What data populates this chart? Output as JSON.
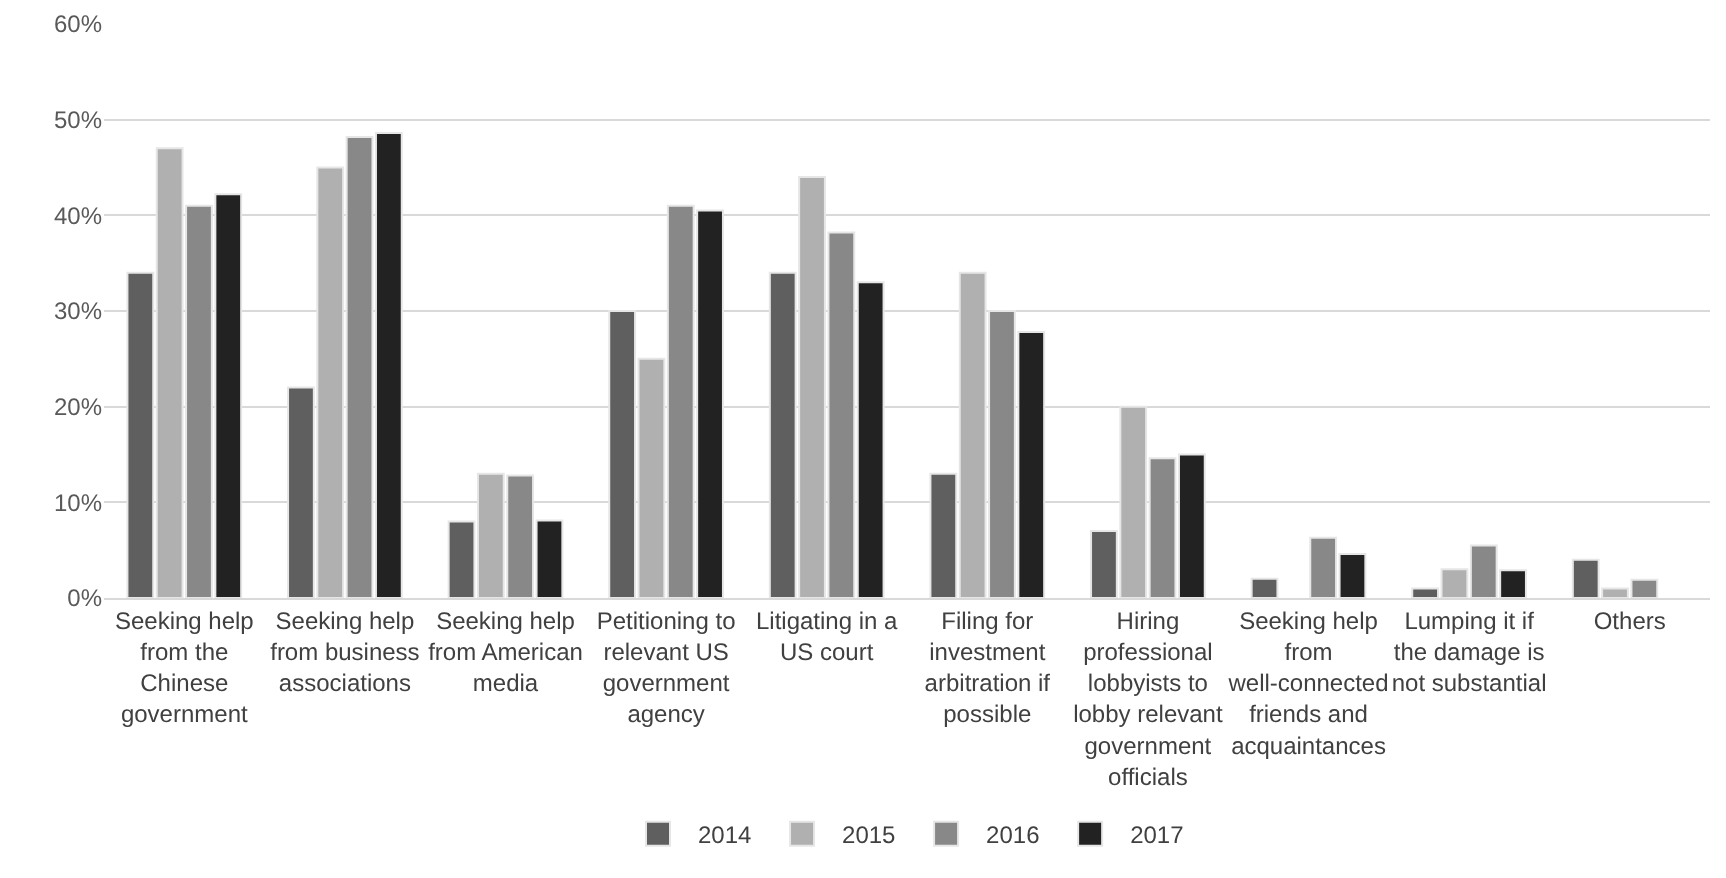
{
  "chart_data": {
    "type": "bar",
    "categories": [
      "Seeking help from the Chinese government",
      "Seeking help from business associations",
      "Seeking help from American media",
      "Petitioning to relevant US government agency",
      "Litigating in a US court",
      "Filing for investment arbitration if possible",
      "Hiring professional lobbyists to lobby relevant government officials",
      "Seeking help from well-connected friends and acquaintances",
      "Lumping it if the damage is not substantial",
      "Others"
    ],
    "series": [
      {
        "name": "2014",
        "color": "#5f5f5f",
        "values": [
          34,
          22,
          8,
          30,
          34,
          13,
          7,
          2,
          1,
          4
        ]
      },
      {
        "name": "2015",
        "color": "#b0b0b0",
        "values": [
          47,
          45,
          13,
          25,
          44,
          34,
          20,
          null,
          3,
          1
        ]
      },
      {
        "name": "2016",
        "color": "#888888",
        "values": [
          41,
          48.2,
          12.8,
          41,
          38.2,
          30,
          14.6,
          6.3,
          5.5,
          1.9
        ]
      },
      {
        "name": "2017",
        "color": "#222222",
        "values": [
          42.2,
          48.6,
          8.1,
          40.5,
          33,
          27.8,
          15,
          4.6,
          2.9,
          null
        ]
      }
    ],
    "ylim": [
      0,
      60
    ],
    "yticks": [
      {
        "value": 0,
        "label": "0%"
      },
      {
        "value": 10,
        "label": "10%"
      },
      {
        "value": 20,
        "label": "20%"
      },
      {
        "value": 30,
        "label": "30%"
      },
      {
        "value": 40,
        "label": "40%"
      },
      {
        "value": 50,
        "label": "50%"
      },
      {
        "value": 60,
        "label": "60%"
      }
    ],
    "grid": "y",
    "legend": "bottom"
  }
}
